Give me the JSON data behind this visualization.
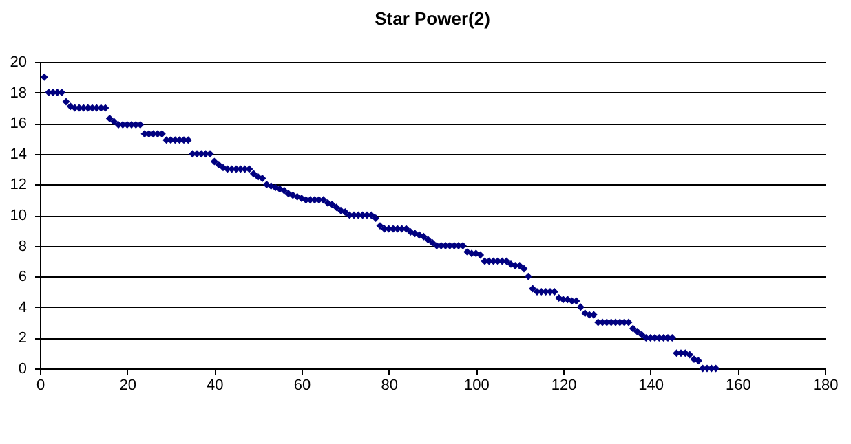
{
  "chart_data": {
    "type": "scatter",
    "title": "Star Power(2)",
    "x": [
      1,
      2,
      3,
      4,
      5,
      6,
      7,
      8,
      9,
      10,
      11,
      12,
      13,
      14,
      15,
      16,
      17,
      18,
      19,
      20,
      21,
      22,
      23,
      24,
      25,
      26,
      27,
      28,
      29,
      30,
      31,
      32,
      33,
      34,
      35,
      36,
      37,
      38,
      39,
      40,
      41,
      42,
      43,
      44,
      45,
      46,
      47,
      48,
      49,
      50,
      51,
      52,
      53,
      54,
      55,
      56,
      57,
      58,
      59,
      60,
      61,
      62,
      63,
      64,
      65,
      66,
      67,
      68,
      69,
      70,
      71,
      72,
      73,
      74,
      75,
      76,
      77,
      78,
      79,
      80,
      81,
      82,
      83,
      84,
      85,
      86,
      87,
      88,
      89,
      90,
      91,
      92,
      93,
      94,
      95,
      96,
      97,
      98,
      99,
      100,
      101,
      102,
      103,
      104,
      105,
      106,
      107,
      108,
      109,
      110,
      111,
      112,
      113,
      114,
      115,
      116,
      117,
      118,
      119,
      120,
      121,
      122,
      123,
      124,
      125,
      126,
      127,
      128,
      129,
      130,
      131,
      132,
      133,
      134,
      135,
      136,
      137,
      138,
      139,
      140,
      141,
      142,
      143,
      144,
      145,
      146,
      147,
      148,
      149,
      150,
      151,
      152,
      153,
      154,
      155
    ],
    "series": [
      {
        "color": "#000080",
        "values": [
          19,
          18,
          18,
          18,
          18,
          17.4,
          17.1,
          17,
          17,
          17,
          17,
          17,
          17,
          17,
          17,
          16.3,
          16.1,
          15.9,
          15.9,
          15.9,
          15.9,
          15.9,
          15.9,
          15.3,
          15.3,
          15.3,
          15.3,
          15.3,
          14.9,
          14.9,
          14.9,
          14.9,
          14.9,
          14.9,
          14,
          14,
          14,
          14,
          14,
          13.5,
          13.3,
          13.1,
          13,
          13,
          13,
          13,
          13,
          13,
          12.7,
          12.5,
          12.4,
          12,
          11.9,
          11.8,
          11.7,
          11.6,
          11.4,
          11.3,
          11.2,
          11.1,
          11,
          11,
          11,
          11,
          11,
          10.8,
          10.7,
          10.5,
          10.3,
          10.2,
          10,
          10,
          10,
          10,
          10,
          10,
          9.8,
          9.3,
          9.1,
          9.1,
          9.1,
          9.1,
          9.1,
          9.1,
          8.9,
          8.8,
          8.7,
          8.6,
          8.4,
          8.2,
          8,
          8,
          8,
          8,
          8,
          8,
          8,
          7.6,
          7.5,
          7.5,
          7.4,
          7,
          7,
          7,
          7,
          7,
          7,
          6.8,
          6.7,
          6.7,
          6.5,
          6,
          5.2,
          5,
          5,
          5,
          5,
          5,
          4.6,
          4.5,
          4.5,
          4.4,
          4.4,
          4,
          3.6,
          3.5,
          3.5,
          3,
          3,
          3,
          3,
          3,
          3,
          3,
          3,
          2.6,
          2.4,
          2.2,
          2,
          2,
          2,
          2,
          2,
          2,
          2,
          1,
          1,
          1,
          0.9,
          0.6,
          0.5,
          0,
          0,
          0,
          0
        ]
      }
    ],
    "xlim": [
      0,
      180
    ],
    "xticks": [
      0,
      20,
      40,
      60,
      80,
      100,
      120,
      140,
      160,
      180
    ],
    "ylim": [
      0,
      20
    ],
    "yticks": [
      0,
      2,
      4,
      6,
      8,
      10,
      12,
      14,
      16,
      18,
      20
    ],
    "grid": "y",
    "marker": "diamond",
    "legend": false
  }
}
